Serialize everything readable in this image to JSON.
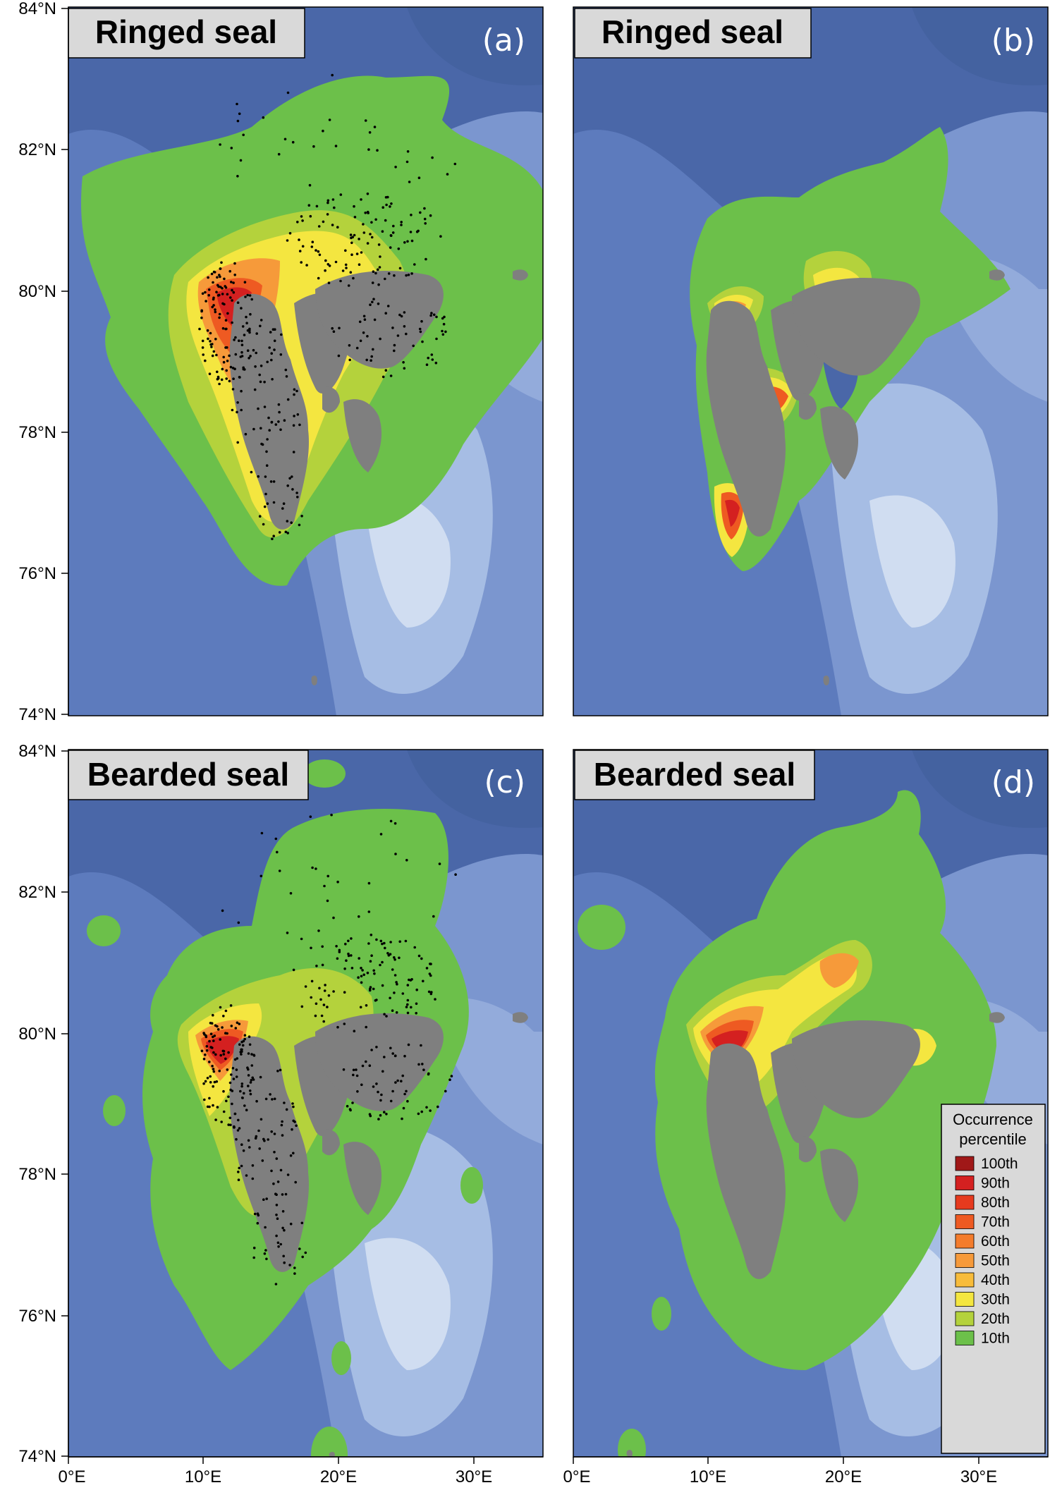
{
  "figure": {
    "panels": [
      {
        "id": "a",
        "letter": "(a)",
        "title": "Ringed seal",
        "show_points": true,
        "intensity": "high"
      },
      {
        "id": "b",
        "letter": "(b)",
        "title": "Ringed seal",
        "show_points": false,
        "intensity": "low"
      },
      {
        "id": "c",
        "letter": "(c)",
        "title": "Bearded seal",
        "show_points": true,
        "intensity": "high"
      },
      {
        "id": "d",
        "letter": "(d)",
        "title": "Bearded seal",
        "show_points": false,
        "intensity": "medium"
      }
    ],
    "lat_ticks": [
      "84°N",
      "82°N",
      "80°N",
      "78°N",
      "76°N",
      "74°N"
    ],
    "lon_ticks": [
      "0°E",
      "10°E",
      "20°E",
      "30°E"
    ],
    "legend": {
      "title_line1": "Occurrence",
      "title_line2": "percentile",
      "items": [
        {
          "label": "100th",
          "color": "#a01818"
        },
        {
          "label": "90th",
          "color": "#d42020"
        },
        {
          "label": "80th",
          "color": "#e63a1e"
        },
        {
          "label": "70th",
          "color": "#ee5a22"
        },
        {
          "label": "60th",
          "color": "#f47c2c"
        },
        {
          "label": "50th",
          "color": "#f69a3a"
        },
        {
          "label": "40th",
          "color": "#f8bc3a"
        },
        {
          "label": "30th",
          "color": "#f4e640"
        },
        {
          "label": "20th",
          "color": "#b4d23c"
        },
        {
          "label": "10th",
          "color": "#6cc04a"
        }
      ]
    },
    "colors": {
      "deep_ocean": "#4a67a8",
      "mid_ocean": "#6b88c4",
      "shelf": "#98b2dc",
      "shallow": "#c4d4ee",
      "land": "#7f7f7f",
      "outer_occurrence": "#6cc04a"
    }
  }
}
